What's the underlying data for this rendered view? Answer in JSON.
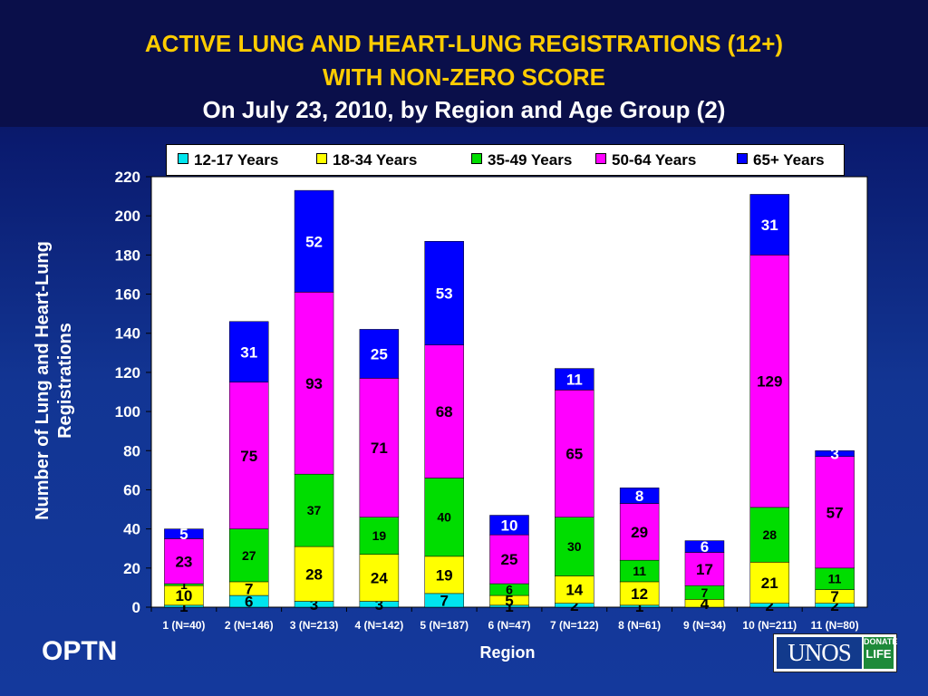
{
  "title": {
    "line1": "ACTIVE LUNG AND HEART-LUNG REGISTRATIONS (12+)",
    "line2": "WITH NON-ZERO SCORE",
    "subtitle": "On July 23, 2010, by Region and Age Group (2)"
  },
  "footer": {
    "brand": "OPTN",
    "logo_text": "UNOS",
    "logo_badge_line1": "DONATE",
    "logo_badge_line2": "LIFE"
  },
  "colors": {
    "12-17 Years": "#00e5ee",
    "18-34 Years": "#ffff00",
    "35-49 Years": "#00dd00",
    "50-64 Years": "#ff00ff",
    "65+ Years": "#0000ff"
  },
  "chart_data": {
    "type": "bar",
    "stacked": true,
    "title": "ACTIVE LUNG AND HEART-LUNG REGISTRATIONS (12+) WITH NON-ZERO SCORE",
    "subtitle": "On July 23, 2010, by Region and Age Group (2)",
    "xlabel": "Region",
    "ylabel": "Number of Lung and Heart-Lung Registrations",
    "ylim": [
      0,
      220
    ],
    "yticks": [
      0,
      20,
      40,
      60,
      80,
      100,
      120,
      140,
      160,
      180,
      200,
      220
    ],
    "legend_position": "top",
    "categories": [
      "1 (N=40)",
      "2 (N=146)",
      "3 (N=213)",
      "4 (N=142)",
      "5 (N=187)",
      "6 (N=47)",
      "7 (N=122)",
      "8 (N=61)",
      "9 (N=34)",
      "10 (N=211)",
      "11 (N=80)"
    ],
    "series": [
      {
        "name": "12-17 Years",
        "values": [
          1,
          6,
          3,
          3,
          7,
          1,
          2,
          1,
          0,
          2,
          2
        ],
        "labels": [
          "1",
          "6",
          "3",
          "3",
          "7",
          "1",
          "2",
          "1",
          "",
          "2",
          "2"
        ]
      },
      {
        "name": "18-34 Years",
        "values": [
          10,
          7,
          28,
          24,
          19,
          5,
          14,
          12,
          4,
          21,
          7
        ],
        "labels": [
          "10",
          "7",
          "28",
          "24",
          "19",
          "5",
          "14",
          "12",
          "4",
          "21",
          "7"
        ]
      },
      {
        "name": "35-49 Years",
        "values": [
          1,
          27,
          37,
          19,
          40,
          6,
          30,
          11,
          7,
          28,
          11
        ],
        "labels": [
          "1",
          "27",
          "37",
          "19",
          "40",
          "6",
          "30",
          "11",
          "7",
          "28",
          "11"
        ]
      },
      {
        "name": "50-64 Years",
        "values": [
          23,
          75,
          93,
          71,
          68,
          25,
          65,
          29,
          17,
          129,
          57
        ],
        "labels": [
          "23",
          "75",
          "93",
          "71",
          "68",
          "25",
          "65",
          "29",
          "17",
          "129",
          "57"
        ]
      },
      {
        "name": "65+ Years",
        "values": [
          5,
          31,
          52,
          25,
          53,
          10,
          11,
          8,
          6,
          31,
          3
        ],
        "labels": [
          "5",
          "31",
          "52",
          "25",
          "53",
          "10",
          "11",
          "8",
          "6",
          "31",
          "3"
        ]
      }
    ]
  }
}
